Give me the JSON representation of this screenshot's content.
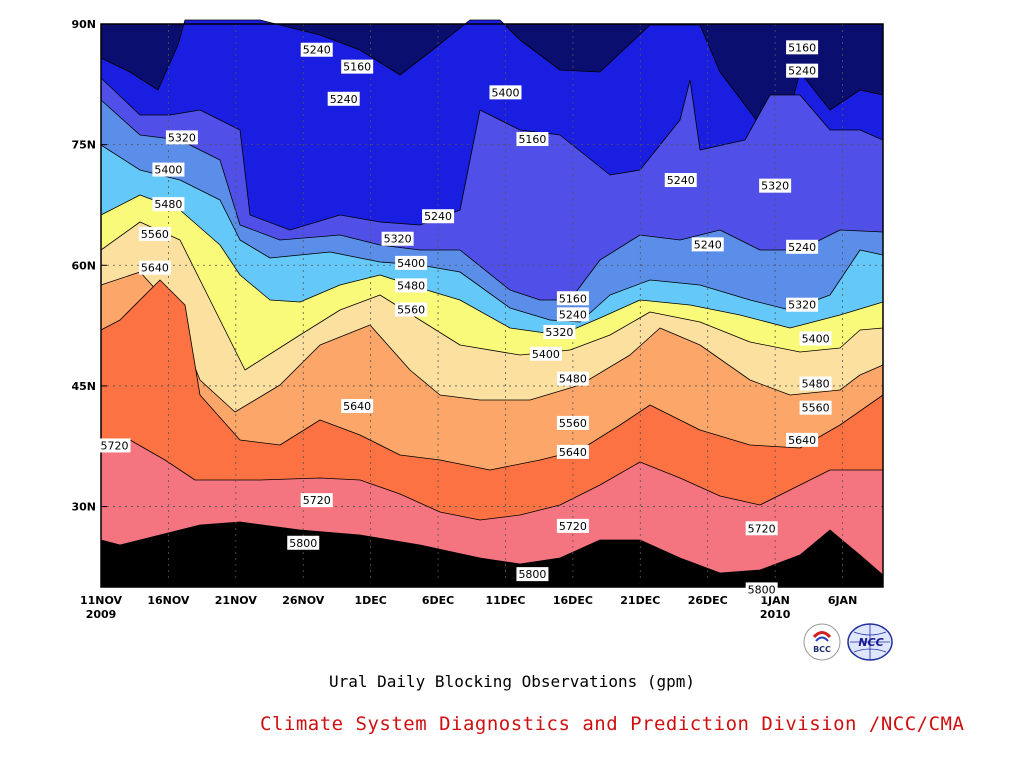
{
  "chart_data": {
    "type": "heatmap",
    "subtype": "filled contour (time-latitude cross section)",
    "title": "Ural Daily Blocking Observations (gpm)",
    "x": {
      "ticks": [
        "11NOV",
        "16NOV",
        "21NOV",
        "26NOV",
        "1DEC",
        "6DEC",
        "11DEC",
        "16DEC",
        "21DEC",
        "26DEC",
        "1JAN",
        "6JAN"
      ],
      "year_labels": [
        "2009",
        "2010"
      ],
      "range": [
        "2009-11-11",
        "2010-01-08"
      ]
    },
    "y": {
      "ticks": [
        "30N",
        "45N",
        "60N",
        "75N",
        "90N"
      ],
      "range": [
        20,
        90
      ]
    },
    "grid": true,
    "contour_levels": [
      5160,
      5240,
      5320,
      5400,
      5480,
      5560,
      5640,
      5720,
      5800
    ],
    "fill_colors": [
      "#0a0e6e",
      "#1a1ee0",
      "#5050e8",
      "#5a8ee8",
      "#64c8f8",
      "#fafa7a",
      "#fce0a0",
      "#fca66a",
      "#fc7242",
      "#f47480"
    ],
    "contour_labels": [
      {
        "text": "5240",
        "date": "2009-11-27",
        "lat": 86.8
      },
      {
        "text": "5160",
        "date": "2009-11-30",
        "lat": 84.7
      },
      {
        "text": "5240",
        "date": "2009-11-29",
        "lat": 80.7
      },
      {
        "text": "5400",
        "date": "2009-12-11",
        "lat": 81.5
      },
      {
        "text": "5160",
        "date": "2009-12-13",
        "lat": 75.7
      },
      {
        "text": "5160",
        "date": "2010-01-02",
        "lat": 87.1
      },
      {
        "text": "5240",
        "date": "2010-01-02",
        "lat": 84.2
      },
      {
        "text": "5320",
        "date": "2009-11-17",
        "lat": 75.9
      },
      {
        "text": "5400",
        "date": "2009-11-16",
        "lat": 71.9
      },
      {
        "text": "5480",
        "date": "2009-11-16",
        "lat": 67.6
      },
      {
        "text": "5560",
        "date": "2009-11-15",
        "lat": 63.9
      },
      {
        "text": "5640",
        "date": "2009-11-15",
        "lat": 59.7
      },
      {
        "text": "5240",
        "date": "2009-12-06",
        "lat": 66.1
      },
      {
        "text": "5320",
        "date": "2009-12-03",
        "lat": 63.3
      },
      {
        "text": "5400",
        "date": "2009-12-04",
        "lat": 60.3
      },
      {
        "text": "5480",
        "date": "2009-12-04",
        "lat": 57.5
      },
      {
        "text": "5560",
        "date": "2009-12-04",
        "lat": 54.5
      },
      {
        "text": "5240",
        "date": "2009-12-24",
        "lat": 70.6
      },
      {
        "text": "5240",
        "date": "2009-12-26",
        "lat": 62.6
      },
      {
        "text": "5320",
        "date": "2009-12-31",
        "lat": 69.9
      },
      {
        "text": "5240",
        "date": "2010-01-02",
        "lat": 62.3
      },
      {
        "text": "5160",
        "date": "2009-12-16",
        "lat": 55.9
      },
      {
        "text": "5240",
        "date": "2009-12-16",
        "lat": 53.9
      },
      {
        "text": "5320",
        "date": "2009-12-15",
        "lat": 51.7
      },
      {
        "text": "5400",
        "date": "2009-12-14",
        "lat": 49.0
      },
      {
        "text": "5480",
        "date": "2009-12-16",
        "lat": 45.9
      },
      {
        "text": "5560",
        "date": "2009-12-16",
        "lat": 40.4
      },
      {
        "text": "5640",
        "date": "2009-12-16",
        "lat": 36.8
      },
      {
        "text": "5720",
        "date": "2009-12-16",
        "lat": 27.6
      },
      {
        "text": "5800",
        "date": "2009-12-13",
        "lat": 21.6
      },
      {
        "text": "5320",
        "date": "2010-01-02",
        "lat": 55.1
      },
      {
        "text": "5400",
        "date": "2010-01-03",
        "lat": 50.9
      },
      {
        "text": "5480",
        "date": "2010-01-03",
        "lat": 45.3
      },
      {
        "text": "5560",
        "date": "2010-01-03",
        "lat": 42.3
      },
      {
        "text": "5640",
        "date": "2010-01-02",
        "lat": 38.3
      },
      {
        "text": "5720",
        "date": "2009-12-30",
        "lat": 27.3
      },
      {
        "text": "5800",
        "date": "2009-12-30",
        "lat": 19.7
      },
      {
        "text": "5640",
        "date": "2009-11-30",
        "lat": 42.5
      },
      {
        "text": "5720",
        "date": "2009-11-12",
        "lat": 37.6
      },
      {
        "text": "5720",
        "date": "2009-11-27",
        "lat": 30.8
      },
      {
        "text": "5800",
        "date": "2009-11-26",
        "lat": 25.5
      }
    ]
  },
  "footer": {
    "credit": "Climate System Diagnostics and Prediction Division /NCC/CMA"
  },
  "logos": [
    "BCC",
    "NCC"
  ]
}
